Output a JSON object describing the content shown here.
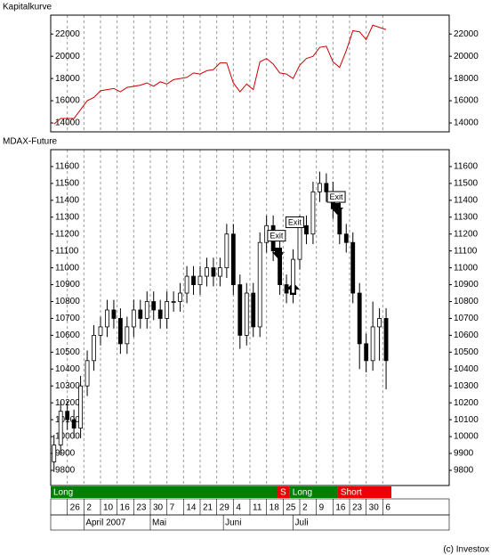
{
  "chart_data": [
    {
      "type": "line",
      "title": "Kapitalkurve",
      "color": "#cc0000",
      "x": [
        1,
        3,
        5,
        7,
        9,
        11,
        13,
        15,
        17,
        19,
        21,
        23,
        25,
        27,
        29,
        31,
        33,
        35,
        37,
        39,
        41,
        43,
        45,
        47,
        49,
        51,
        53,
        55,
        57,
        59,
        61,
        63,
        65,
        67,
        69,
        71,
        73,
        75,
        77,
        79,
        81,
        83,
        85,
        87,
        89,
        91,
        93,
        95,
        97,
        99,
        101
      ],
      "values": [
        13900,
        14400,
        14400,
        14400,
        15200,
        16000,
        16300,
        16900,
        17000,
        17100,
        16800,
        17200,
        17300,
        17400,
        17600,
        17300,
        17700,
        17500,
        17900,
        18000,
        18100,
        18500,
        18400,
        18700,
        18800,
        19400,
        19400,
        17600,
        16800,
        17500,
        17000,
        19500,
        19800,
        19300,
        18500,
        18400,
        18000,
        19200,
        19800,
        20000,
        20800,
        20900,
        19500,
        19000,
        20500,
        22300,
        22200,
        21500,
        22800,
        22600,
        22400
      ],
      "xlim": [
        0,
        120
      ],
      "ylim": [
        13200,
        23700
      ],
      "yticks": [
        14000,
        16000,
        18000,
        20000,
        22000
      ]
    },
    {
      "type": "candlestick",
      "title": "MDAX-Future",
      "x": [
        1,
        3,
        5,
        7,
        9,
        11,
        13,
        15,
        17,
        19,
        21,
        23,
        25,
        27,
        29,
        31,
        33,
        35,
        37,
        39,
        41,
        43,
        45,
        47,
        49,
        51,
        53,
        55,
        57,
        59,
        61,
        63,
        65,
        67,
        69,
        71,
        73,
        75,
        77,
        79,
        81,
        83,
        85,
        87,
        89,
        91,
        93,
        95,
        97,
        99,
        101
      ],
      "open": [
        9850,
        9950,
        10150,
        10100,
        10050,
        10300,
        10450,
        10600,
        10650,
        10750,
        10700,
        10550,
        10650,
        10750,
        10700,
        10800,
        10750,
        10700,
        10800,
        10800,
        10850,
        10950,
        10900,
        10950,
        11000,
        10950,
        11000,
        11200,
        10900,
        10600,
        10850,
        10650,
        11150,
        11250,
        11100,
        10900,
        10850,
        11050,
        11250,
        11200,
        11450,
        11500,
        11450,
        11350,
        11200,
        11150,
        10850,
        10550,
        10450,
        10650,
        10700
      ],
      "high": [
        10010,
        10210,
        10210,
        10160,
        10360,
        10510,
        10660,
        10710,
        10810,
        10810,
        10760,
        10710,
        10810,
        10810,
        10860,
        10860,
        10810,
        10860,
        10860,
        10910,
        11010,
        11010,
        11010,
        11060,
        11060,
        11060,
        11260,
        11260,
        10960,
        10910,
        10910,
        11210,
        11310,
        11310,
        11160,
        10960,
        11110,
        11310,
        11310,
        11510,
        11570,
        11560,
        11510,
        11410,
        11260,
        11210,
        10910,
        10610,
        10800,
        10760,
        10760
      ],
      "low": [
        9790,
        9890,
        10040,
        9990,
        9990,
        10240,
        10390,
        10540,
        10590,
        10640,
        10490,
        10490,
        10590,
        10640,
        10640,
        10690,
        10640,
        10640,
        10740,
        10740,
        10790,
        10840,
        10840,
        10890,
        10890,
        10890,
        10940,
        10840,
        10520,
        10540,
        10590,
        10590,
        11090,
        11040,
        10840,
        10790,
        10790,
        10990,
        11140,
        11140,
        11390,
        11390,
        11290,
        11140,
        11090,
        10790,
        10400,
        10380,
        10390,
        10450,
        10280
      ],
      "close": [
        9950,
        10150,
        10100,
        10050,
        10300,
        10450,
        10600,
        10650,
        10750,
        10700,
        10550,
        10650,
        10750,
        10700,
        10800,
        10750,
        10700,
        10800,
        10800,
        10850,
        10950,
        10900,
        10950,
        11000,
        10950,
        11000,
        11200,
        10900,
        10600,
        10850,
        10650,
        11150,
        11250,
        11100,
        10900,
        10850,
        11050,
        11250,
        11200,
        11450,
        11500,
        11450,
        11350,
        11200,
        11150,
        10850,
        10550,
        10450,
        10650,
        10700,
        10450
      ],
      "xlim": [
        0,
        120
      ],
      "ylim": [
        9710,
        11700
      ],
      "yticks": [
        9800,
        9900,
        10000,
        10100,
        10200,
        10300,
        10400,
        10500,
        10600,
        10700,
        10800,
        10900,
        11000,
        11100,
        11200,
        11300,
        11400,
        11500,
        11600
      ],
      "xticks": [
        {
          "value": 5,
          "label": "26"
        },
        {
          "value": 10,
          "label": "2"
        },
        {
          "value": 15,
          "label": "10"
        },
        {
          "value": 20,
          "label": "16"
        },
        {
          "value": 25,
          "label": "23"
        },
        {
          "value": 30,
          "label": "30"
        },
        {
          "value": 35,
          "label": "7"
        },
        {
          "value": 40,
          "label": "14"
        },
        {
          "value": 45,
          "label": "21"
        },
        {
          "value": 50,
          "label": "29"
        },
        {
          "value": 55,
          "label": "4"
        },
        {
          "value": 60,
          "label": "11"
        },
        {
          "value": 65,
          "label": "18"
        },
        {
          "value": 70,
          "label": "25"
        },
        {
          "value": 75,
          "label": "2"
        },
        {
          "value": 80,
          "label": "9"
        },
        {
          "value": 85,
          "label": "16"
        },
        {
          "value": 90,
          "label": "23"
        },
        {
          "value": 95,
          "label": "30"
        },
        {
          "value": 100,
          "label": "6"
        }
      ],
      "months": [
        {
          "label": "April 2007",
          "x": 10
        },
        {
          "label": "Mai",
          "x": 30
        },
        {
          "label": "Juni",
          "x": 52
        },
        {
          "label": "Juli",
          "x": 73
        }
      ],
      "signals": [
        {
          "label": "Long",
          "start": 0,
          "end": 68.3,
          "color": "#008000"
        },
        {
          "label": "S",
          "start": 68.3,
          "end": 72,
          "color": "#ee0000"
        },
        {
          "label": "Long",
          "start": 72,
          "end": 86.5,
          "color": "#008000"
        },
        {
          "label": "Short",
          "start": 86.5,
          "end": 102.6,
          "color": "#ee0000"
        }
      ],
      "annotations": [
        {
          "text": "Exit",
          "x": 68,
          "y": 11190
        },
        {
          "text": "Exit",
          "x": 73.5,
          "y": 11270
        },
        {
          "text": "Exit",
          "x": 86,
          "y": 11420
        }
      ]
    }
  ],
  "footer": "(c) Investox"
}
